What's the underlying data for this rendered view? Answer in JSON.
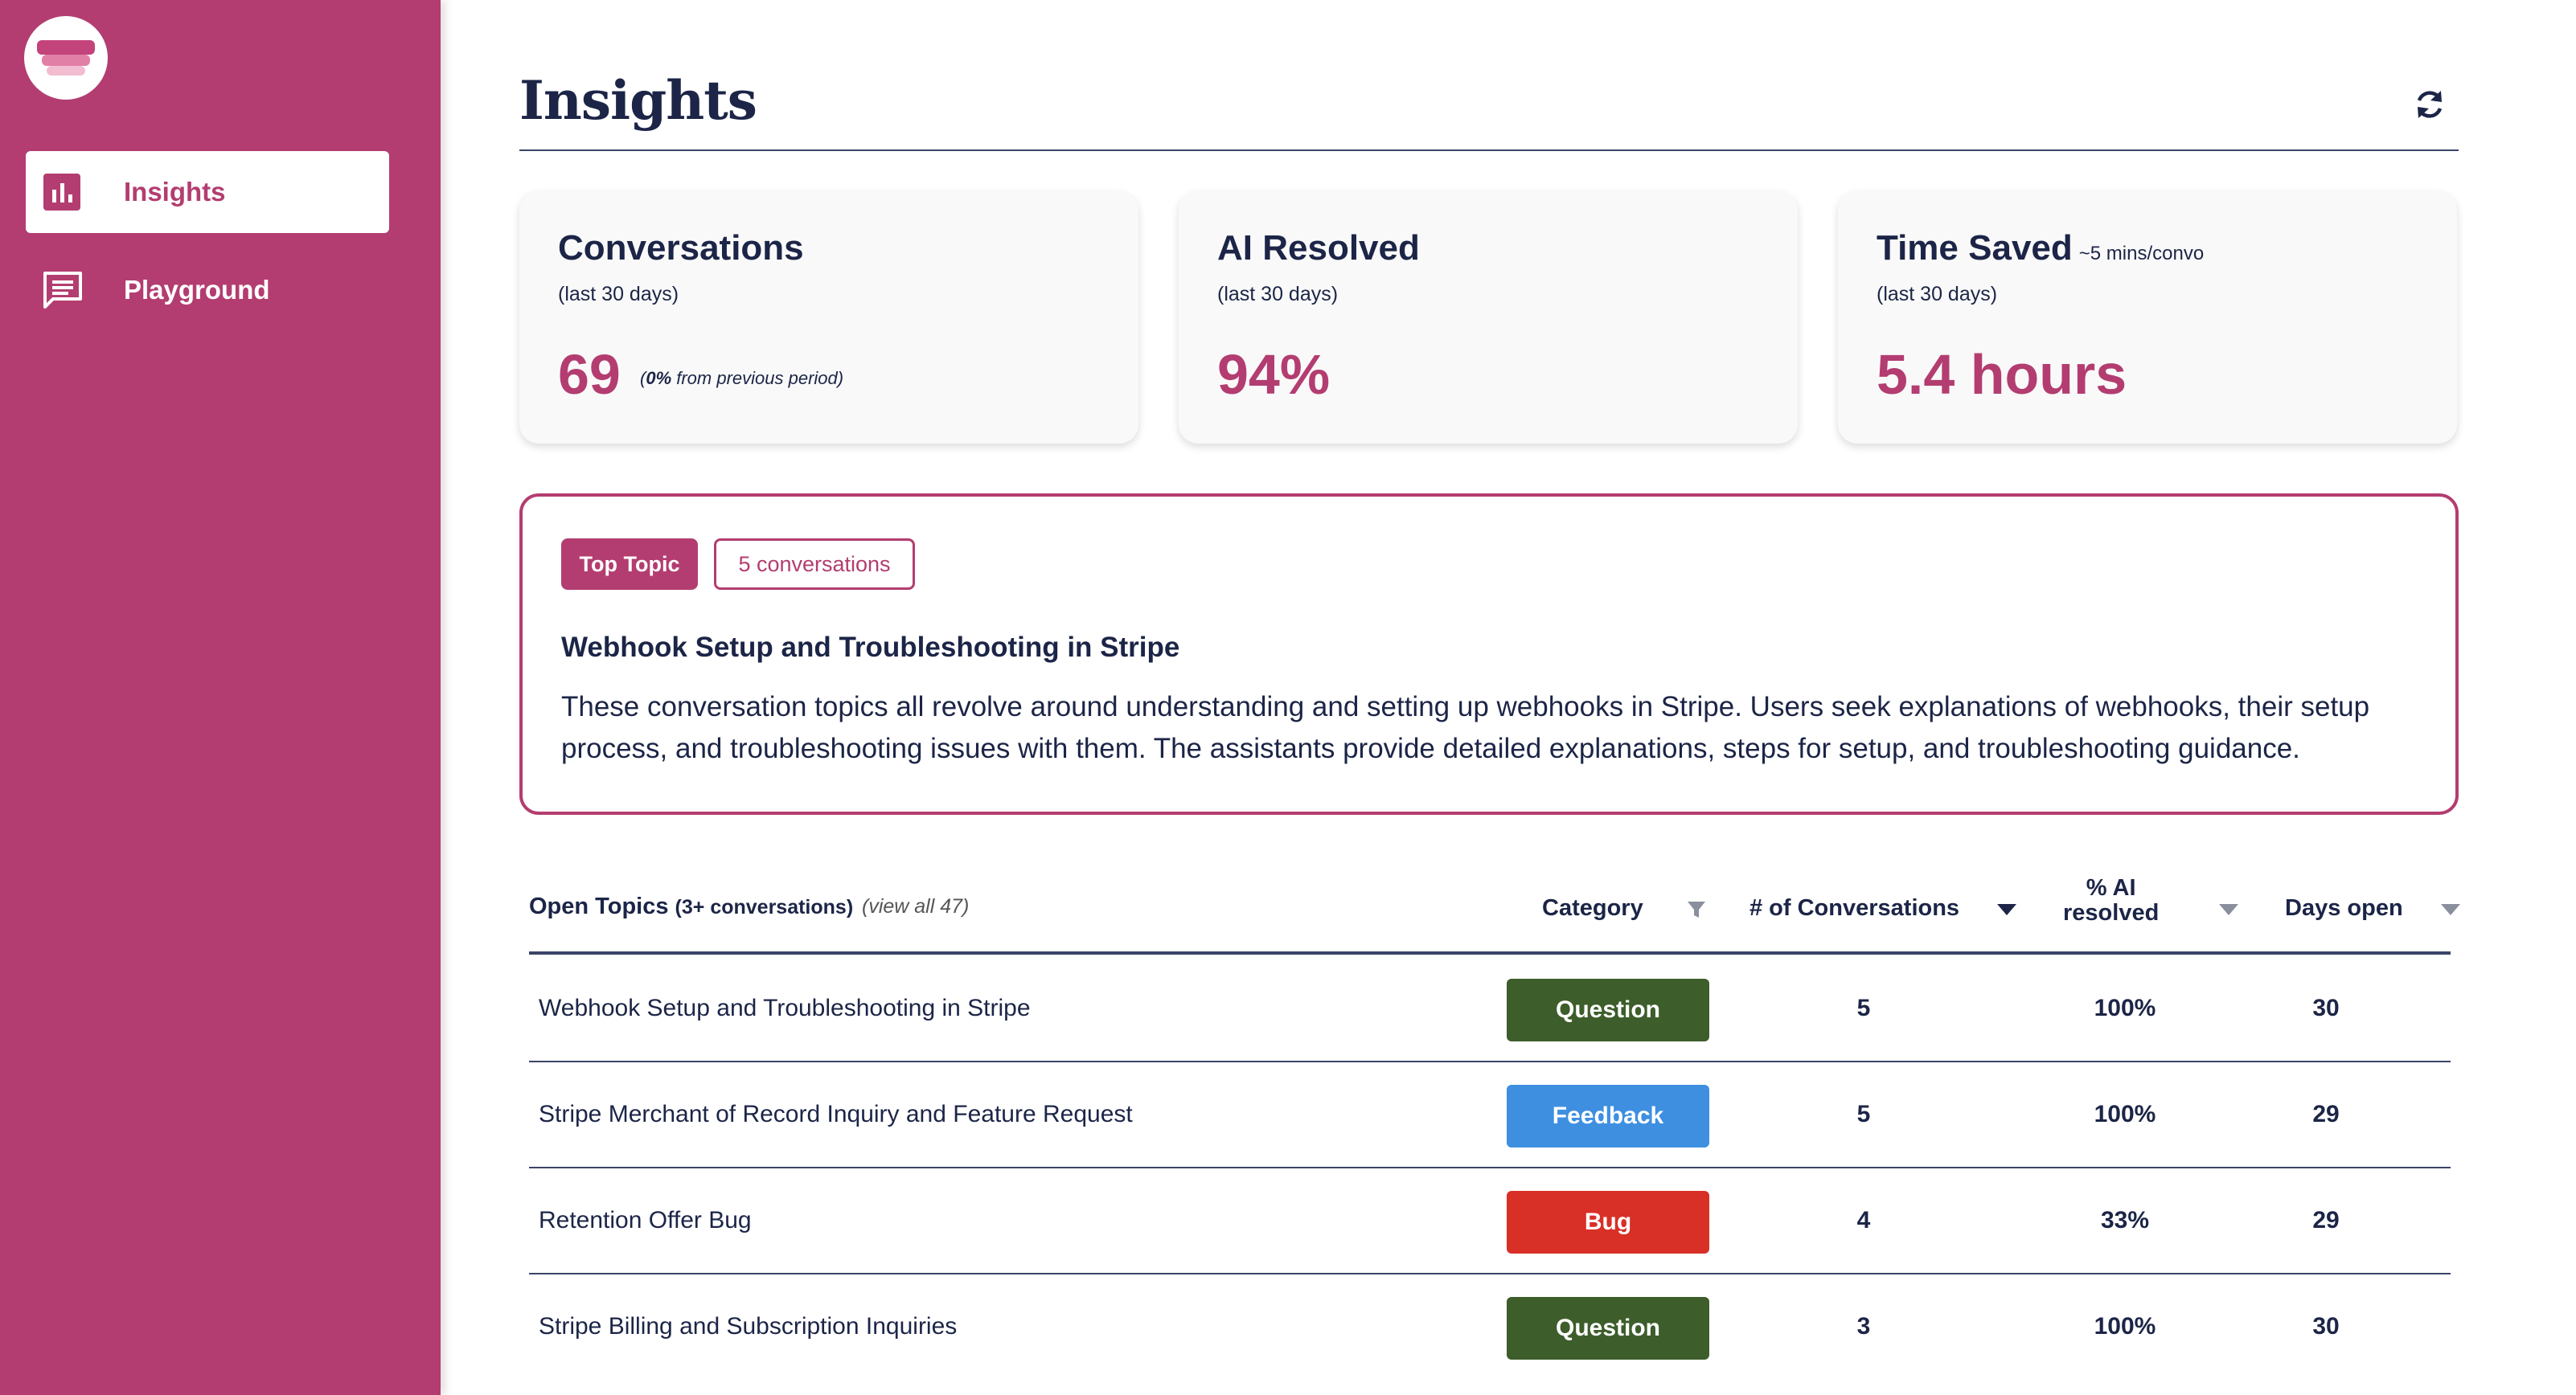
{
  "sidebar": {
    "items": [
      {
        "label": "Insights",
        "icon": "bar-chart-icon",
        "active": true
      },
      {
        "label": "Playground",
        "icon": "chat-icon",
        "active": false
      }
    ]
  },
  "header": {
    "title": "Insights",
    "refresh_icon": "refresh-icon"
  },
  "cards": [
    {
      "title": "Conversations",
      "note": "",
      "subtitle": "(last 30 days)",
      "value": "69",
      "change_bold": "0%",
      "change_rest": " from previous period)",
      "change_open": "("
    },
    {
      "title": "AI Resolved",
      "note": "",
      "subtitle": "(last 30 days)",
      "value": "94%"
    },
    {
      "title": "Time Saved",
      "note": "~5 mins/convo",
      "subtitle": "(last 30 days)",
      "value": "5.4 hours"
    }
  ],
  "top_topic": {
    "badge": "Top Topic",
    "count_badge": "5 conversations",
    "title": "Webhook Setup and Troubleshooting in Stripe",
    "description": "These conversation topics all revolve around understanding and setting up webhooks in Stripe. Users seek explanations of webhooks, their setup process, and troubleshooting issues with them. The assistants provide detailed explanations, steps for setup, and troubleshooting guidance."
  },
  "table": {
    "title": "Open Topics",
    "title_suffix": "(3+ conversations)",
    "view_all": "(view all 47)",
    "columns": {
      "category": "Category",
      "conversations": "# of Conversations",
      "ai_line1": "% AI",
      "ai_line2": "resolved",
      "days": "Days open"
    },
    "rows": [
      {
        "topic": "Webhook Setup and Troubleshooting in Stripe",
        "category": "Question",
        "conversations": "5",
        "ai_resolved": "100%",
        "days_open": "30"
      },
      {
        "topic": "Stripe Merchant of Record Inquiry and Feature Request",
        "category": "Feedback",
        "conversations": "5",
        "ai_resolved": "100%",
        "days_open": "29"
      },
      {
        "topic": "Retention Offer Bug",
        "category": "Bug",
        "conversations": "4",
        "ai_resolved": "33%",
        "days_open": "29"
      },
      {
        "topic": "Stripe Billing and Subscription Inquiries",
        "category": "Question",
        "conversations": "3",
        "ai_resolved": "100%",
        "days_open": "30"
      }
    ]
  },
  "colors": {
    "brand": "#b33d70",
    "navy": "#1c2547",
    "question": "#3d5d2b",
    "feedback": "#3e8fe0",
    "bug": "#d82f26"
  }
}
